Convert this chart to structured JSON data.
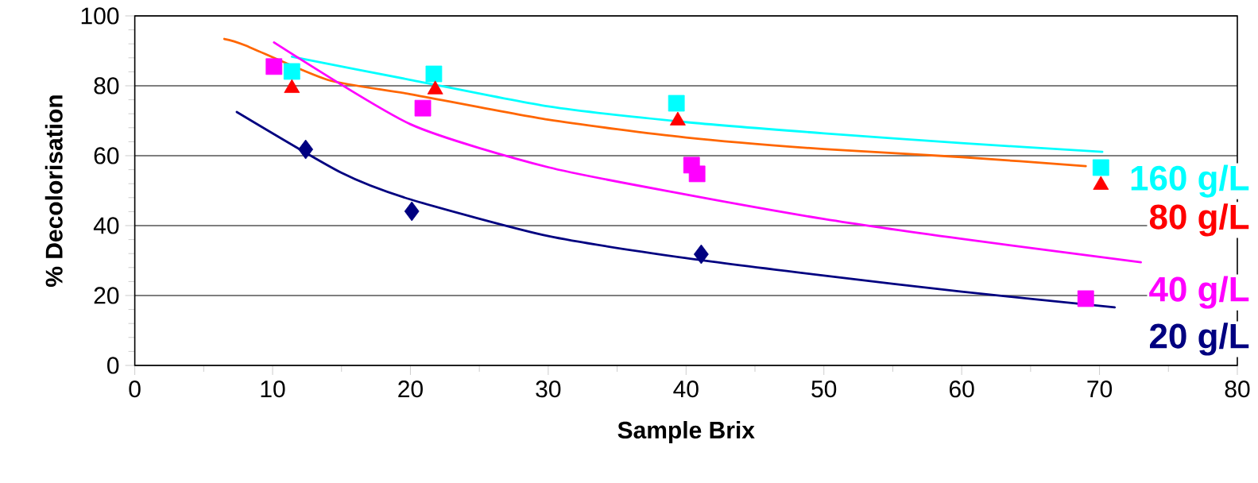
{
  "chart_data": {
    "type": "scatter",
    "xlabel": "Sample Brix",
    "ylabel": "% Decolorisation",
    "xlim": [
      0,
      80
    ],
    "xticks": [
      0,
      10,
      20,
      30,
      40,
      50,
      60,
      70,
      80
    ],
    "ylim": [
      0,
      100
    ],
    "yticks": [
      0,
      20,
      40,
      60,
      80,
      100
    ],
    "grid": "y",
    "series": [
      {
        "name": "160 g/L",
        "marker": "square",
        "color": "#00ffff",
        "x": [
          11.4,
          21.7,
          39.3,
          70.1
        ],
        "values": [
          84.1,
          83.4,
          75.0,
          56.6
        ]
      },
      {
        "name": "80 g/L",
        "marker": "triangle",
        "color": "#ff0000",
        "x": [
          11.4,
          21.8,
          39.4,
          70.1
        ],
        "values": [
          79.3,
          78.9,
          70.0,
          51.6
        ]
      },
      {
        "name": "40 g/L",
        "marker": "square",
        "color": "#ff00ff",
        "x": [
          10.1,
          20.9,
          40.4,
          40.8,
          69.0
        ],
        "values": [
          85.5,
          73.6,
          57.3,
          54.8,
          19.1
        ]
      },
      {
        "name": "20 g/L",
        "marker": "diamond",
        "color": "#000080",
        "x": [
          12.4,
          20.1,
          41.1
        ],
        "values": [
          61.8,
          44.1,
          31.8
        ]
      },
      {
        "type": "line",
        "marker": "none",
        "color": "#00ffff",
        "x": [
          11.4,
          20,
          30,
          40,
          50,
          60,
          70.2
        ],
        "values": [
          88.3,
          81.7,
          74.1,
          69.6,
          66.4,
          63.6,
          61.1
        ]
      },
      {
        "type": "line",
        "marker": "none",
        "color": "#ff6600",
        "x": [
          6.5,
          8,
          14,
          20,
          30,
          40,
          50,
          60,
          69
        ],
        "values": [
          93.4,
          91.6,
          81.7,
          77.6,
          70.3,
          65.2,
          61.9,
          59.6,
          57.0
        ]
      },
      {
        "type": "line",
        "marker": "none",
        "color": "#ff00ff",
        "x": [
          10.1,
          20,
          30,
          40,
          50,
          60,
          73.0
        ],
        "values": [
          92.4,
          69.0,
          56.7,
          48.9,
          41.9,
          36.2,
          29.5
        ]
      },
      {
        "type": "line",
        "marker": "none",
        "color": "#000080",
        "x": [
          7.4,
          15,
          20,
          30,
          40,
          50,
          60,
          71.1
        ],
        "values": [
          72.5,
          55.1,
          47.5,
          37.0,
          30.7,
          25.7,
          21.1,
          16.6
        ]
      }
    ]
  }
}
